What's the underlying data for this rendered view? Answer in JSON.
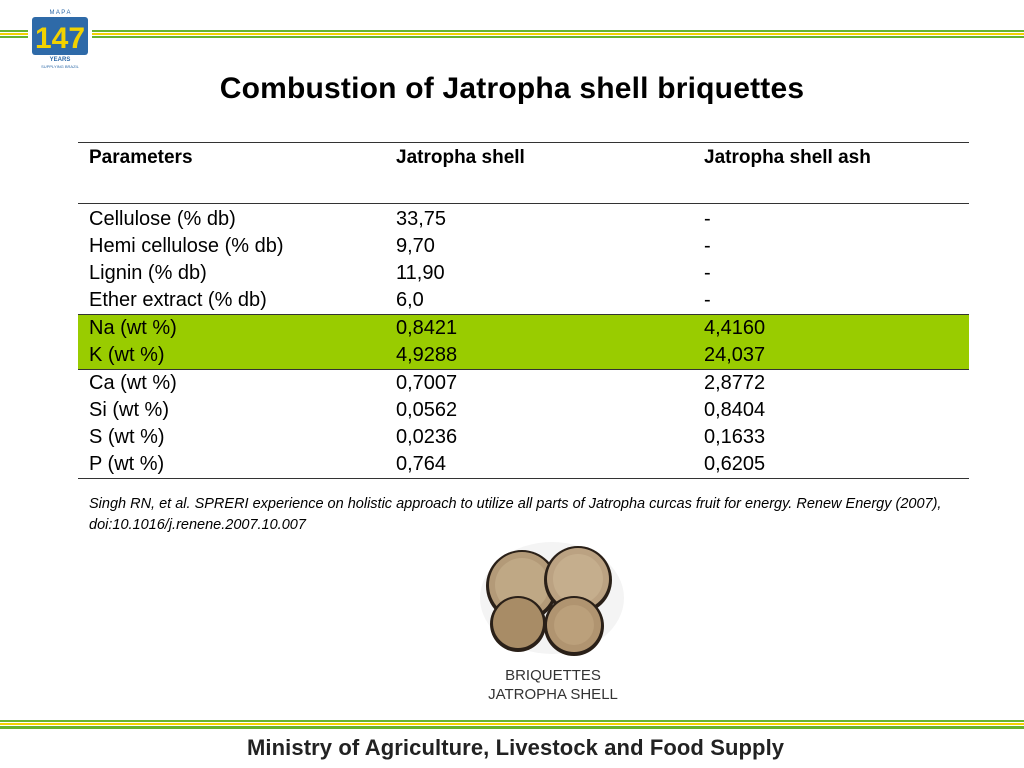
{
  "header": {
    "logo_text_top": "M A P A",
    "logo_number": "147",
    "logo_years": "YEARS",
    "logo_tagline": "SUPPLYING BRAZIL",
    "colors": {
      "green": "#66b32e",
      "yellow": "#f2d200",
      "blue": "#2e6aa8"
    }
  },
  "title": "Combustion of Jatropha shell briquettes",
  "table": {
    "headers": [
      "Parameters",
      "Jatropha shell",
      "Jatropha shell ash"
    ],
    "rows": [
      [
        "Cellulose (% db)",
        "33,75",
        "-"
      ],
      [
        "Hemi cellulose (% db)",
        "9,70",
        "-"
      ],
      [
        "Lignin (% db)",
        "11,90",
        "-"
      ],
      [
        "Ether extract (% db)",
        "6,0",
        "-"
      ],
      [
        "Na (wt %)",
        "0,8421",
        "4,4160"
      ],
      [
        "K (wt %)",
        "4,9288",
        "24,037"
      ],
      [
        "Ca (wt %)",
        "0,7007",
        "2,8772"
      ],
      [
        "Si (wt %)",
        "0,0562",
        "0,8404"
      ],
      [
        "S (wt %)",
        "0,0236",
        "0,1633"
      ],
      [
        "P (wt %)",
        "0,764",
        "0,6205"
      ]
    ],
    "highlight_color": "#99cc00"
  },
  "citation": "Singh RN, et al. SPRERI experience on holistic approach to utilize all parts of Jatropha curcas fruit for energy. Renew Energy (2007), doi:10.1016/j.renene.2007.10.007",
  "image": {
    "caption_line1": "BRIQUETTES",
    "caption_line2": "JATROPHA SHELL"
  },
  "footer": "Ministry of Agriculture, Livestock and Food Supply"
}
